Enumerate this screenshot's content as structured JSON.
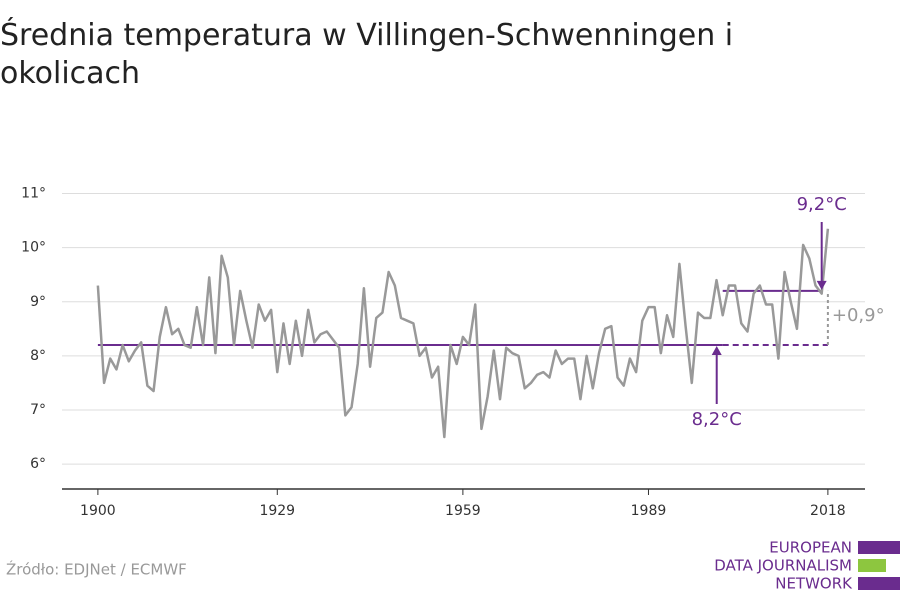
{
  "chart_data": {
    "type": "line",
    "title": "Średnia temperatura w Villingen-Schwenningen i okolicach",
    "source": "Źródło: EDJNet / ECMWF",
    "logo": [
      "EUROPEAN",
      "DATA JOURNALISM",
      "NETWORK"
    ],
    "x": [
      1900,
      1901,
      1902,
      1903,
      1904,
      1905,
      1906,
      1907,
      1908,
      1909,
      1910,
      1911,
      1912,
      1913,
      1914,
      1915,
      1916,
      1917,
      1918,
      1919,
      1920,
      1921,
      1922,
      1923,
      1924,
      1925,
      1926,
      1927,
      1928,
      1929,
      1930,
      1931,
      1932,
      1933,
      1934,
      1935,
      1936,
      1937,
      1938,
      1939,
      1940,
      1941,
      1942,
      1943,
      1944,
      1945,
      1946,
      1947,
      1948,
      1949,
      1950,
      1951,
      1952,
      1953,
      1954,
      1955,
      1956,
      1957,
      1958,
      1959,
      1960,
      1961,
      1962,
      1963,
      1964,
      1965,
      1966,
      1967,
      1968,
      1969,
      1970,
      1971,
      1972,
      1973,
      1974,
      1975,
      1976,
      1977,
      1978,
      1979,
      1980,
      1981,
      1982,
      1983,
      1984,
      1985,
      1986,
      1987,
      1988,
      1989,
      1990,
      1991,
      1992,
      1993,
      1994,
      1995,
      1996,
      1997,
      1998,
      1999,
      2000,
      2001,
      2002,
      2003,
      2004,
      2005,
      2006,
      2007,
      2008,
      2009,
      2010,
      2011,
      2012,
      2013,
      2014,
      2015,
      2016,
      2017,
      2018
    ],
    "series": [
      {
        "color": "#999999",
        "values": [
          9.3,
          7.5,
          7.95,
          7.75,
          8.2,
          7.9,
          8.1,
          8.25,
          7.45,
          7.35,
          8.35,
          8.9,
          8.4,
          8.5,
          8.2,
          8.15,
          8.9,
          8.2,
          9.45,
          8.05,
          9.85,
          9.45,
          8.2,
          9.2,
          8.65,
          8.15,
          8.95,
          8.65,
          8.85,
          7.7,
          8.6,
          7.85,
          8.65,
          8.0,
          8.85,
          8.25,
          8.4,
          8.45,
          8.3,
          8.15,
          6.9,
          7.05,
          7.85,
          9.25,
          7.8,
          8.7,
          8.8,
          9.55,
          9.3,
          8.7,
          8.65,
          8.6,
          8.0,
          8.15,
          7.6,
          7.8,
          6.5,
          8.2,
          7.85,
          8.35,
          8.2,
          8.95,
          6.65,
          7.25,
          8.1,
          7.2,
          8.15,
          8.05,
          8.0,
          7.4,
          7.5,
          7.65,
          7.7,
          7.6,
          8.1,
          7.85,
          7.95,
          7.95,
          7.2,
          8.0,
          7.4,
          8.05,
          8.5,
          8.55,
          7.6,
          7.45,
          7.95,
          7.7,
          8.65,
          8.9,
          8.9,
          8.05,
          8.75,
          8.35,
          9.7,
          8.55,
          7.5,
          8.8,
          8.7,
          8.7,
          9.4,
          8.75,
          9.3,
          9.3,
          8.6,
          8.45,
          9.15,
          9.3,
          8.95,
          8.95,
          7.95,
          9.55,
          9.0,
          8.5,
          10.05,
          9.8,
          9.3,
          9.15,
          10.35
        ]
      }
    ],
    "reference_lines": [
      {
        "value": 8.2,
        "label": "8,2°C",
        "from": 1900,
        "to": 2018,
        "dashed_from": 2001,
        "color": "#6a2c8e"
      },
      {
        "value": 9.2,
        "label": "9,2°C",
        "from": 2001,
        "to": 2017,
        "color": "#6a2c8e"
      }
    ],
    "difference_label": "+0,9°",
    "xlim": [
      1894.2,
      2024
    ],
    "xticks": [
      1900,
      1929,
      1959,
      1989,
      2018
    ],
    "ylim": [
      5.54,
      11.25
    ],
    "yticks": [
      {
        "value": 6,
        "label": "6°"
      },
      {
        "value": 7,
        "label": "7°"
      },
      {
        "value": 8,
        "label": "8°"
      },
      {
        "value": 9,
        "label": "9°"
      },
      {
        "value": 10,
        "label": "10°"
      },
      {
        "value": 11,
        "label": "11°"
      }
    ],
    "grid": true
  }
}
